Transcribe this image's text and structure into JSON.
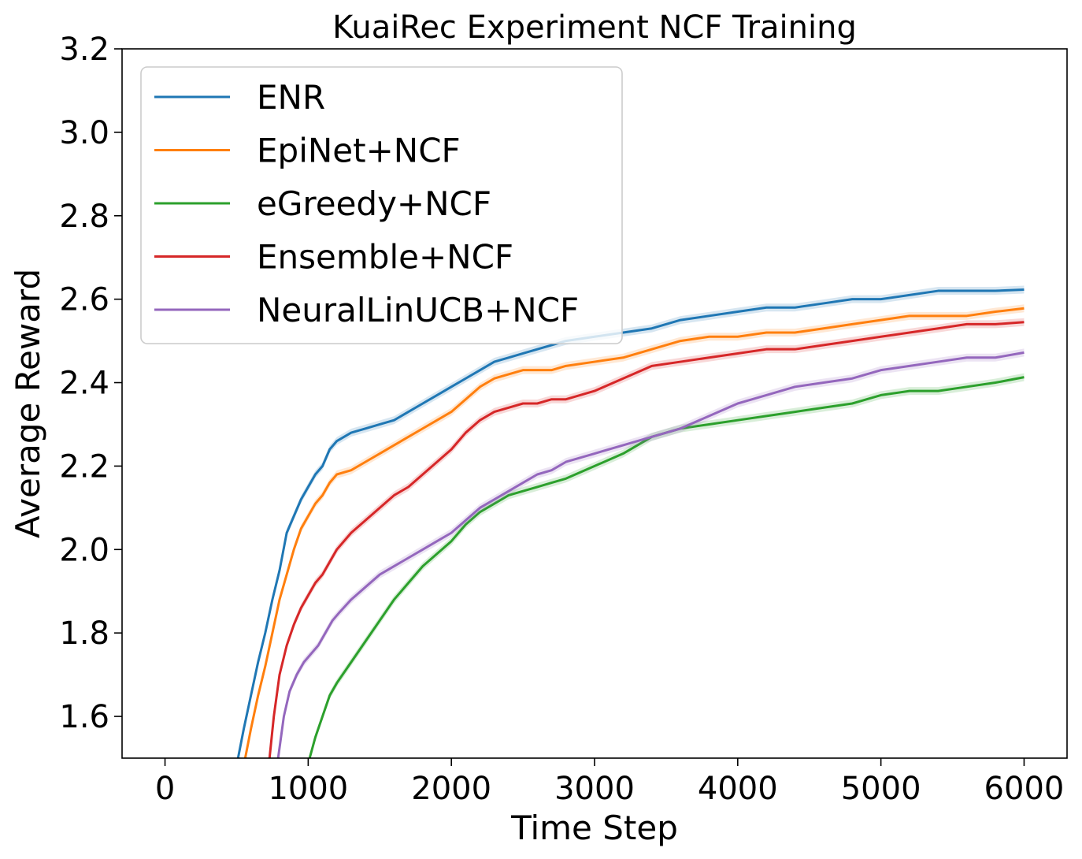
{
  "chart_data": {
    "type": "line",
    "title": "KuaiRec Experiment NCF Training",
    "xlabel": "Time Step",
    "ylabel": "Average Reward",
    "xlim": [
      -300,
      6300
    ],
    "ylim": [
      1.5,
      3.2
    ],
    "xticks": [
      0,
      1000,
      2000,
      3000,
      4000,
      5000,
      6000
    ],
    "xtick_labels": [
      "0",
      "1000",
      "2000",
      "3000",
      "4000",
      "5000",
      "6000"
    ],
    "yticks": [
      1.6,
      1.8,
      2.0,
      2.2,
      2.4,
      2.6,
      2.8,
      3.0,
      3.2
    ],
    "ytick_labels": [
      "1.6",
      "1.8",
      "2.0",
      "2.2",
      "2.4",
      "2.6",
      "2.8",
      "3.0",
      "3.2"
    ],
    "grid": false,
    "legend": "upper-left",
    "series": [
      {
        "name": "ENR",
        "color": "#1f77b4",
        "x": [
          510,
          550,
          600,
          650,
          700,
          750,
          800,
          850,
          900,
          950,
          1000,
          1050,
          1100,
          1150,
          1200,
          1300,
          1400,
          1500,
          1600,
          1700,
          1800,
          1900,
          2000,
          2100,
          2200,
          2300,
          2400,
          2500,
          2600,
          2700,
          2800,
          3000,
          3200,
          3400,
          3600,
          3800,
          4000,
          4200,
          4400,
          4600,
          4800,
          5000,
          5200,
          5400,
          5600,
          5800,
          6000
        ],
        "y": [
          1.5,
          1.57,
          1.65,
          1.73,
          1.8,
          1.88,
          1.95,
          2.04,
          2.08,
          2.12,
          2.15,
          2.18,
          2.2,
          2.24,
          2.26,
          2.28,
          2.29,
          2.3,
          2.31,
          2.33,
          2.35,
          2.37,
          2.39,
          2.41,
          2.43,
          2.45,
          2.46,
          2.47,
          2.48,
          2.49,
          2.5,
          2.51,
          2.52,
          2.53,
          2.55,
          2.56,
          2.57,
          2.58,
          2.58,
          2.59,
          2.6,
          2.6,
          2.61,
          2.62,
          2.62,
          2.62,
          2.623
        ]
      },
      {
        "name": "EpiNet+NCF",
        "color": "#ff7f0e",
        "x": [
          560,
          600,
          650,
          700,
          750,
          800,
          850,
          900,
          950,
          1000,
          1050,
          1100,
          1150,
          1200,
          1300,
          1400,
          1500,
          1600,
          1700,
          1800,
          1900,
          2000,
          2100,
          2200,
          2300,
          2400,
          2500,
          2600,
          2700,
          2800,
          3000,
          3200,
          3400,
          3600,
          3800,
          4000,
          4200,
          4400,
          4600,
          4800,
          5000,
          5200,
          5400,
          5600,
          5800,
          6000
        ],
        "y": [
          1.5,
          1.57,
          1.65,
          1.72,
          1.8,
          1.88,
          1.94,
          2.0,
          2.05,
          2.08,
          2.11,
          2.13,
          2.16,
          2.18,
          2.19,
          2.21,
          2.23,
          2.25,
          2.27,
          2.29,
          2.31,
          2.33,
          2.36,
          2.39,
          2.41,
          2.42,
          2.43,
          2.43,
          2.43,
          2.44,
          2.45,
          2.46,
          2.48,
          2.5,
          2.51,
          2.51,
          2.52,
          2.52,
          2.53,
          2.54,
          2.55,
          2.56,
          2.56,
          2.56,
          2.57,
          2.578
        ]
      },
      {
        "name": "eGreedy+NCF",
        "color": "#2ca02c",
        "x": [
          1010,
          1050,
          1100,
          1150,
          1200,
          1300,
          1400,
          1500,
          1600,
          1700,
          1800,
          1900,
          2000,
          2100,
          2200,
          2300,
          2400,
          2500,
          2600,
          2700,
          2800,
          3000,
          3200,
          3400,
          3600,
          3800,
          4000,
          4200,
          4400,
          4600,
          4800,
          5000,
          5200,
          5400,
          5600,
          5800,
          6000
        ],
        "y": [
          1.5,
          1.55,
          1.6,
          1.65,
          1.68,
          1.73,
          1.78,
          1.83,
          1.88,
          1.92,
          1.96,
          1.99,
          2.02,
          2.06,
          2.09,
          2.11,
          2.13,
          2.14,
          2.15,
          2.16,
          2.17,
          2.2,
          2.23,
          2.27,
          2.29,
          2.3,
          2.31,
          2.32,
          2.33,
          2.34,
          2.35,
          2.37,
          2.38,
          2.38,
          2.39,
          2.4,
          2.413
        ]
      },
      {
        "name": "Ensemble+NCF",
        "color": "#d62728",
        "x": [
          730,
          760,
          800,
          850,
          900,
          950,
          1000,
          1050,
          1100,
          1150,
          1200,
          1300,
          1400,
          1500,
          1600,
          1700,
          1800,
          1900,
          2000,
          2100,
          2200,
          2300,
          2400,
          2500,
          2600,
          2700,
          2800,
          3000,
          3200,
          3400,
          3600,
          3800,
          4000,
          4200,
          4400,
          4600,
          4800,
          5000,
          5200,
          5400,
          5600,
          5800,
          6000
        ],
        "y": [
          1.5,
          1.6,
          1.7,
          1.77,
          1.82,
          1.86,
          1.89,
          1.92,
          1.94,
          1.97,
          2.0,
          2.04,
          2.07,
          2.1,
          2.13,
          2.15,
          2.18,
          2.21,
          2.24,
          2.28,
          2.31,
          2.33,
          2.34,
          2.35,
          2.35,
          2.36,
          2.36,
          2.38,
          2.41,
          2.44,
          2.45,
          2.46,
          2.47,
          2.48,
          2.48,
          2.49,
          2.5,
          2.51,
          2.52,
          2.53,
          2.54,
          2.54,
          2.545
        ]
      },
      {
        "name": "NeuralLinUCB+NCF",
        "color": "#9467bd",
        "x": [
          790,
          830,
          870,
          920,
          970,
          1020,
          1070,
          1120,
          1170,
          1220,
          1300,
          1400,
          1500,
          1600,
          1700,
          1800,
          1900,
          2000,
          2100,
          2200,
          2300,
          2400,
          2500,
          2600,
          2700,
          2800,
          3000,
          3200,
          3400,
          3600,
          3800,
          4000,
          4200,
          4400,
          4600,
          4800,
          5000,
          5200,
          5400,
          5600,
          5800,
          6000
        ],
        "y": [
          1.5,
          1.6,
          1.66,
          1.7,
          1.73,
          1.75,
          1.77,
          1.8,
          1.83,
          1.85,
          1.88,
          1.91,
          1.94,
          1.96,
          1.98,
          2.0,
          2.02,
          2.04,
          2.07,
          2.1,
          2.12,
          2.14,
          2.16,
          2.18,
          2.19,
          2.21,
          2.23,
          2.25,
          2.27,
          2.29,
          2.32,
          2.35,
          2.37,
          2.39,
          2.4,
          2.41,
          2.43,
          2.44,
          2.45,
          2.46,
          2.46,
          2.472
        ]
      }
    ]
  }
}
